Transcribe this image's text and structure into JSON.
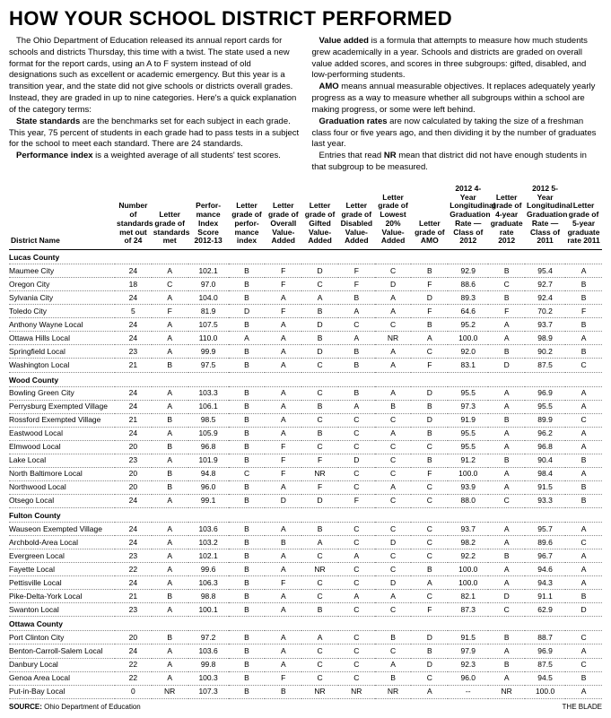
{
  "title": "HOW YOUR SCHOOL DISTRICT PERFORMED",
  "intro_col1": [
    {
      "pre": "",
      "bold": "",
      "text": "The Ohio Department of Education released its annual report cards for schools and districts Thursday, this time with a twist. The state used a new format for the report cards, using an A to F system instead of old designations such as excellent or academic emergency. But this year is a transition year, and the state did not give schools or districts overall grades. Instead, they are graded in up to nine categories. Here's a quick explanation of the category terms:"
    },
    {
      "pre": "",
      "bold": "State standards",
      "text": " are the benchmarks set for each subject in each grade. This year, 75 percent of students in each grade had to pass tests in a subject for the school to meet each standard. There are 24 standards."
    },
    {
      "pre": "",
      "bold": "Performance index",
      "text": " is a weighted average of all students' test scores."
    }
  ],
  "intro_col2": [
    {
      "pre": "",
      "bold": "Value added",
      "text": " is a formula that attempts to measure how much students grew academically in a year. Schools and districts are graded on overall value added scores, and scores in three subgroups: gifted, disabled, and low-performing students."
    },
    {
      "pre": "",
      "bold": "AMO",
      "text": " means annual measurable objectives. It replaces adequately yearly progress as a way to measure whether all subgroups within a school are making progress, or some were left behind."
    },
    {
      "pre": "",
      "bold": "Graduation rates",
      "text": " are now calculated by taking the size of a freshman class four or five years ago, and then dividing it by the number of graduates last year."
    },
    {
      "pre": "Entries that read ",
      "bold": "NR",
      "text": " mean that district did not have enough students in that subgroup to be measured."
    }
  ],
  "columns": [
    "District Name",
    "Number of standards met out of 24",
    "Letter grade of standards met",
    "Perfor-mance Index Score 2012-13",
    "Letter grade of perfor-mance index",
    "Letter grade of Overall Value-Added",
    "Letter grade of Gifted Value-Added",
    "Letter grade of Disabled Value-Added",
    "Letter grade of Lowest 20% Value-Added",
    "Letter grade of AMO",
    "2012 4-Year Longitudinal Graduation Rate — Class of 2012",
    "Letter grade of 4-year graduate rate 2012",
    "2012 5-Year Longitudinal Graduation Rate — Class of 2011",
    "Letter grade of 5-year graduate rate 2011"
  ],
  "sections": [
    {
      "county": "Lucas County",
      "rows": [
        [
          "Maumee City",
          "24",
          "A",
          "102.1",
          "B",
          "F",
          "D",
          "F",
          "C",
          "B",
          "92.9",
          "B",
          "95.4",
          "A"
        ],
        [
          "Oregon City",
          "18",
          "C",
          "97.0",
          "B",
          "F",
          "C",
          "F",
          "D",
          "F",
          "88.6",
          "C",
          "92.7",
          "B"
        ],
        [
          "Sylvania City",
          "24",
          "A",
          "104.0",
          "B",
          "A",
          "A",
          "B",
          "A",
          "D",
          "89.3",
          "B",
          "92.4",
          "B"
        ],
        [
          "Toledo City",
          "5",
          "F",
          "81.9",
          "D",
          "F",
          "B",
          "A",
          "A",
          "F",
          "64.6",
          "F",
          "70.2",
          "F"
        ],
        [
          "Anthony Wayne Local",
          "24",
          "A",
          "107.5",
          "B",
          "A",
          "D",
          "C",
          "C",
          "B",
          "95.2",
          "A",
          "93.7",
          "B"
        ],
        [
          "Ottawa Hills Local",
          "24",
          "A",
          "110.0",
          "A",
          "A",
          "B",
          "A",
          "NR",
          "A",
          "100.0",
          "A",
          "98.9",
          "A"
        ],
        [
          "Springfield Local",
          "23",
          "A",
          "99.9",
          "B",
          "A",
          "D",
          "B",
          "A",
          "C",
          "92.0",
          "B",
          "90.2",
          "B"
        ],
        [
          "Washington Local",
          "21",
          "B",
          "97.5",
          "B",
          "A",
          "C",
          "B",
          "A",
          "F",
          "83.1",
          "D",
          "87.5",
          "C"
        ]
      ]
    },
    {
      "county": "Wood County",
      "rows": [
        [
          "Bowling Green City",
          "24",
          "A",
          "103.3",
          "B",
          "A",
          "C",
          "B",
          "A",
          "D",
          "95.5",
          "A",
          "96.9",
          "A"
        ],
        [
          "Perrysburg Exempted Village",
          "24",
          "A",
          "106.1",
          "B",
          "A",
          "B",
          "A",
          "B",
          "B",
          "97.3",
          "A",
          "95.5",
          "A"
        ],
        [
          "Rossford Exempted Village",
          "21",
          "B",
          "98.5",
          "B",
          "A",
          "C",
          "C",
          "C",
          "D",
          "91.9",
          "B",
          "89.9",
          "C"
        ],
        [
          "Eastwood Local",
          "24",
          "A",
          "105.9",
          "B",
          "A",
          "B",
          "C",
          "A",
          "B",
          "95.5",
          "A",
          "96.2",
          "A"
        ],
        [
          "Elmwood Local",
          "20",
          "B",
          "96.8",
          "B",
          "F",
          "C",
          "C",
          "C",
          "C",
          "95.5",
          "A",
          "96.8",
          "A"
        ],
        [
          "Lake Local",
          "23",
          "A",
          "101.9",
          "B",
          "F",
          "F",
          "D",
          "C",
          "B",
          "91.2",
          "B",
          "90.4",
          "B"
        ],
        [
          "North Baltimore Local",
          "20",
          "B",
          "94.8",
          "C",
          "F",
          "NR",
          "C",
          "C",
          "F",
          "100.0",
          "A",
          "98.4",
          "A"
        ],
        [
          "Northwood Local",
          "20",
          "B",
          "96.0",
          "B",
          "A",
          "F",
          "C",
          "A",
          "C",
          "93.9",
          "A",
          "91.5",
          "B"
        ],
        [
          "Otsego Local",
          "24",
          "A",
          "99.1",
          "B",
          "D",
          "D",
          "F",
          "C",
          "C",
          "88.0",
          "C",
          "93.3",
          "B"
        ]
      ]
    },
    {
      "county": "Fulton County",
      "rows": [
        [
          "Wauseon Exempted Village",
          "24",
          "A",
          "103.6",
          "B",
          "A",
          "B",
          "C",
          "C",
          "C",
          "93.7",
          "A",
          "95.7",
          "A"
        ],
        [
          "Archbold-Area Local",
          "24",
          "A",
          "103.2",
          "B",
          "B",
          "A",
          "C",
          "D",
          "C",
          "98.2",
          "A",
          "89.6",
          "C"
        ],
        [
          "Evergreen Local",
          "23",
          "A",
          "102.1",
          "B",
          "A",
          "C",
          "A",
          "C",
          "C",
          "92.2",
          "B",
          "96.7",
          "A"
        ],
        [
          "Fayette Local",
          "22",
          "A",
          "99.6",
          "B",
          "A",
          "NR",
          "C",
          "C",
          "B",
          "100.0",
          "A",
          "94.6",
          "A"
        ],
        [
          "Pettisville Local",
          "24",
          "A",
          "106.3",
          "B",
          "F",
          "C",
          "C",
          "D",
          "A",
          "100.0",
          "A",
          "94.3",
          "A"
        ],
        [
          "Pike-Delta-York Local",
          "21",
          "B",
          "98.8",
          "B",
          "A",
          "C",
          "A",
          "A",
          "C",
          "82.1",
          "D",
          "91.1",
          "B"
        ],
        [
          "Swanton Local",
          "23",
          "A",
          "100.1",
          "B",
          "A",
          "B",
          "C",
          "C",
          "F",
          "87.3",
          "C",
          "62.9",
          "D"
        ]
      ]
    },
    {
      "county": "Ottawa County",
      "rows": [
        [
          "Port Clinton City",
          "20",
          "B",
          "97.2",
          "B",
          "A",
          "A",
          "C",
          "B",
          "D",
          "91.5",
          "B",
          "88.7",
          "C"
        ],
        [
          "Benton-Carroll-Salem Local",
          "24",
          "A",
          "103.6",
          "B",
          "A",
          "C",
          "C",
          "C",
          "B",
          "97.9",
          "A",
          "96.9",
          "A"
        ],
        [
          "Danbury Local",
          "22",
          "A",
          "99.8",
          "B",
          "A",
          "C",
          "C",
          "A",
          "D",
          "92.3",
          "B",
          "87.5",
          "C"
        ],
        [
          "Genoa Area Local",
          "22",
          "A",
          "100.3",
          "B",
          "F",
          "C",
          "C",
          "B",
          "C",
          "96.0",
          "A",
          "94.5",
          "B"
        ],
        [
          "Put-in-Bay Local",
          "0",
          "NR",
          "107.3",
          "B",
          "B",
          "NR",
          "NR",
          "NR",
          "A",
          "--",
          "NR",
          "100.0",
          "A"
        ]
      ]
    }
  ],
  "source_label": "SOURCE:",
  "source_text": "Ohio Department of Education",
  "credit": "THE BLADE"
}
